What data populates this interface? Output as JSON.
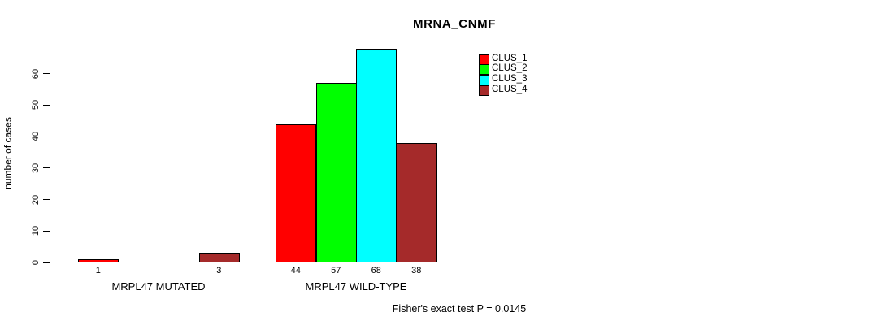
{
  "chart_data": {
    "type": "bar",
    "title": "MRNA_CNMF",
    "ylabel": "number of cases",
    "xlabel": "",
    "categories": [
      "MRPL47 MUTATED",
      "MRPL47 WILD-TYPE"
    ],
    "series": [
      {
        "name": "CLUS_1",
        "color": "#FF0000",
        "values": [
          1,
          44
        ]
      },
      {
        "name": "CLUS_2",
        "color": "#00FF00",
        "values": [
          0,
          57
        ]
      },
      {
        "name": "CLUS_3",
        "color": "#00FFFF",
        "values": [
          0,
          68
        ]
      },
      {
        "name": "CLUS_4",
        "color": "#A52A2A",
        "values": [
          3,
          38
        ]
      }
    ],
    "bar_value_labels": [
      [
        "1",
        "",
        "",
        "3"
      ],
      [
        "44",
        "57",
        "68",
        "38"
      ]
    ],
    "yticks": [
      "0",
      "10",
      "20",
      "30",
      "40",
      "50",
      "60"
    ],
    "ylim": [
      0,
      60
    ],
    "grid": false,
    "legend_position": "top-right",
    "legend_entries": [
      "CLUS_1",
      "CLUS_2",
      "CLUS_3",
      "CLUS_4"
    ],
    "annotation": "Fisher's exact test P = 0.0145"
  }
}
